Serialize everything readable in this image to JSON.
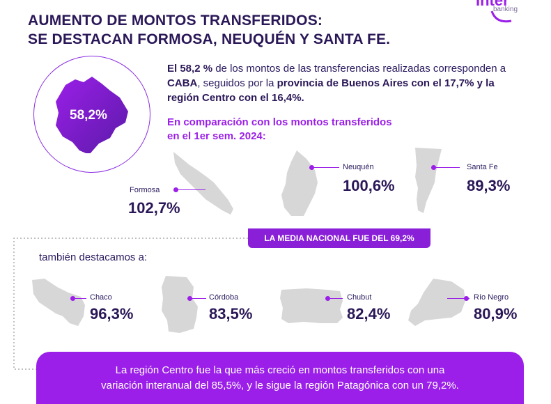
{
  "brand": {
    "name": "Inter",
    "sub": "banking"
  },
  "title": {
    "line1": "AUMENTO DE MONTOS TRANSFERIDOS:",
    "line2": "SE DESTACAN FORMOSA, NEUQUÉN Y SANTA FE."
  },
  "caba": {
    "value": "58,2%"
  },
  "lead": {
    "p1": "El 58,2 %",
    "p2": " de los montos de las transferencias realizadas corresponden a ",
    "p3": "CABA",
    "p4": ", seguidos por la ",
    "p5": "provincia de Buenos Aires con el 17,7% y la región Centro con el 16,4%."
  },
  "compare": {
    "line1": "En comparación con los montos transferidos",
    "line2": "en el 1er sem. 2024:"
  },
  "top_provinces": [
    {
      "name": "Formosa",
      "value": "102,7%"
    },
    {
      "name": "Neuquén",
      "value": "100,6%"
    },
    {
      "name": "Santa Fe",
      "value": "89,3%"
    }
  ],
  "badge": "LA MEDIA NACIONAL FUE DEL 69,2%",
  "also_label": "también destacamos a:",
  "other_provinces": [
    {
      "name": "Chaco",
      "value": "96,3%"
    },
    {
      "name": "Córdoba",
      "value": "83,5%"
    },
    {
      "name": "Chubut",
      "value": "82,4%"
    },
    {
      "name": "Río Negro",
      "value": "80,9%"
    }
  ],
  "footer": {
    "line1": "La región Centro fue la que más creció en montos transferidos con una",
    "line2": "variación interanual del 85,5%, y le sigue la región Patagónica con un 79,2%."
  },
  "colors": {
    "accent": "#9b1fe8",
    "dark": "#2a1757",
    "map": "#d7d7d7"
  }
}
